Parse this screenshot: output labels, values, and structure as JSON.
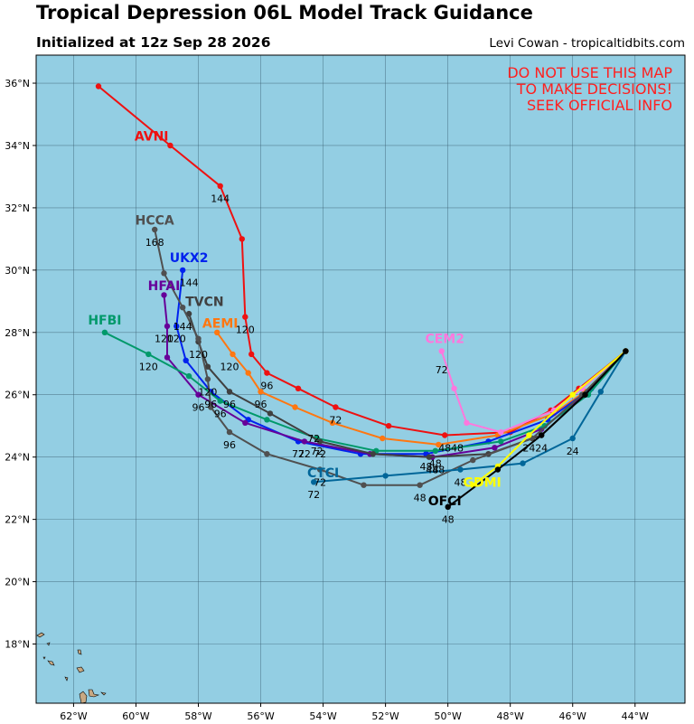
{
  "title": "Tropical Depression 06L Model Track Guidance",
  "subtitle": "Initialized at 12z Sep 28 2026",
  "credit": "Levi Cowan - tropicaltidbits.com",
  "warning": [
    "DO NOT USE THIS MAP",
    "TO MAKE DECISIONS!",
    "SEEK OFFICIAL INFO"
  ],
  "colors": {
    "ocean": "#93cee3",
    "land": "#c8a882",
    "grid": "#3a5f72",
    "warning": "#ff2020"
  },
  "map": {
    "lon_range": [
      -63.2,
      -42.4
    ],
    "lat_range": [
      16.1,
      36.9
    ],
    "lon_ticks": [
      {
        "value": -62,
        "label": "62°W"
      },
      {
        "value": -60,
        "label": "60°W"
      },
      {
        "value": -58,
        "label": "58°W"
      },
      {
        "value": -56,
        "label": "56°W"
      },
      {
        "value": -54,
        "label": "54°W"
      },
      {
        "value": -52,
        "label": "52°W"
      },
      {
        "value": -50,
        "label": "50°W"
      },
      {
        "value": -48,
        "label": "48°W"
      },
      {
        "value": -46,
        "label": "46°W"
      },
      {
        "value": -44,
        "label": "44°W"
      }
    ],
    "lat_ticks": [
      {
        "value": 18,
        "label": "18°N"
      },
      {
        "value": 20,
        "label": "20°N"
      },
      {
        "value": 22,
        "label": "22°N"
      },
      {
        "value": 24,
        "label": "24°N"
      },
      {
        "value": 26,
        "label": "26°N"
      },
      {
        "value": 28,
        "label": "28°N"
      },
      {
        "value": 30,
        "label": "30°N"
      },
      {
        "value": 32,
        "label": "32°N"
      },
      {
        "value": 34,
        "label": "34°N"
      },
      {
        "value": 36,
        "label": "36°N"
      }
    ]
  },
  "chart_data": {
    "type": "scatter",
    "xlim": [
      -63.2,
      -42.4
    ],
    "ylim": [
      16.1,
      36.9
    ],
    "grid": true,
    "models": [
      {
        "name": "AVNI",
        "color": "#ee1111",
        "label_at": [
          -59.5,
          34.3
        ],
        "points": [
          [
            -44.3,
            27.4
          ],
          [
            -45.8,
            26.2
          ],
          [
            -46.7,
            25.5
          ],
          [
            -48.0,
            24.8
          ],
          [
            -50.1,
            24.7
          ],
          [
            -51.9,
            25.0
          ],
          [
            -53.6,
            25.6
          ],
          [
            -54.8,
            26.2
          ],
          [
            -55.8,
            26.7
          ],
          [
            -56.3,
            27.3
          ],
          [
            -56.5,
            28.5
          ],
          [
            -56.6,
            31.0
          ],
          [
            -57.3,
            32.7
          ],
          [
            -58.9,
            34.0
          ],
          [
            -61.2,
            35.9
          ]
        ],
        "tau_labels": [
          {
            "text": "48",
            "at": [
              -50.1,
              24.3
            ]
          },
          {
            "text": "72",
            "at": [
              -53.6,
              25.2
            ]
          },
          {
            "text": "96",
            "at": [
              -55.8,
              26.3
            ]
          },
          {
            "text": "120",
            "at": [
              -56.5,
              28.1
            ]
          },
          {
            "text": "144",
            "at": [
              -57.3,
              32.3
            ]
          }
        ]
      },
      {
        "name": "AEMI",
        "color": "#ff7711",
        "label_at": [
          -57.3,
          28.3
        ],
        "points": [
          [
            -44.3,
            27.4
          ],
          [
            -45.6,
            26.1
          ],
          [
            -46.6,
            25.4
          ],
          [
            -48.4,
            24.7
          ],
          [
            -50.3,
            24.4
          ],
          [
            -52.1,
            24.6
          ],
          [
            -53.7,
            25.1
          ],
          [
            -54.9,
            25.6
          ],
          [
            -56.0,
            26.1
          ],
          [
            -56.4,
            26.7
          ],
          [
            -56.9,
            27.3
          ],
          [
            -57.4,
            28.0
          ]
        ],
        "tau_labels": [
          {
            "text": "48",
            "at": [
              -49.7,
              24.3
            ]
          },
          {
            "text": "72",
            "at": [
              -54.3,
              24.6
            ]
          },
          {
            "text": "96",
            "at": [
              -56.0,
              25.7
            ]
          },
          {
            "text": "120",
            "at": [
              -57.0,
              26.9
            ]
          }
        ]
      },
      {
        "name": "CEM2",
        "color": "#ff77dd",
        "label_at": [
          -50.1,
          27.8
        ],
        "points": [
          [
            -44.3,
            27.4
          ],
          [
            -45.7,
            26.2
          ],
          [
            -46.6,
            25.5
          ],
          [
            -48.3,
            24.8
          ],
          [
            -49.4,
            25.1
          ],
          [
            -49.8,
            26.2
          ],
          [
            -50.2,
            27.4
          ]
        ],
        "tau_labels": [
          {
            "text": "72",
            "at": [
              -50.2,
              26.8
            ]
          }
        ]
      },
      {
        "name": "UKX2",
        "color": "#0022ee",
        "label_at": [
          -58.3,
          30.4
        ],
        "points": [
          [
            -44.3,
            27.4
          ],
          [
            -45.4,
            26.2
          ],
          [
            -46.8,
            25.2
          ],
          [
            -48.7,
            24.5
          ],
          [
            -50.7,
            24.1
          ],
          [
            -52.8,
            24.1
          ],
          [
            -54.8,
            24.5
          ],
          [
            -56.4,
            25.2
          ],
          [
            -57.6,
            26.1
          ],
          [
            -58.4,
            27.1
          ],
          [
            -58.7,
            28.2
          ],
          [
            -58.5,
            30.0
          ]
        ],
        "tau_labels": [
          {
            "text": "48",
            "at": [
              -50.7,
              23.7
            ]
          },
          {
            "text": "72",
            "at": [
              -54.8,
              24.1
            ]
          },
          {
            "text": "96",
            "at": [
              -57.6,
              25.7
            ]
          },
          {
            "text": "120",
            "at": [
              -58.7,
              27.8
            ]
          },
          {
            "text": "144",
            "at": [
              -58.3,
              29.6
            ]
          }
        ]
      },
      {
        "name": "HFAI",
        "color": "#660099",
        "label_at": [
          -59.1,
          29.5
        ],
        "points": [
          [
            -44.3,
            27.4
          ],
          [
            -45.6,
            26.0
          ],
          [
            -47.0,
            24.9
          ],
          [
            -48.5,
            24.3
          ],
          [
            -50.5,
            24.0
          ],
          [
            -52.5,
            24.1
          ],
          [
            -54.6,
            24.5
          ],
          [
            -56.5,
            25.1
          ],
          [
            -58.0,
            26.0
          ],
          [
            -59.0,
            27.2
          ],
          [
            -59.0,
            28.2
          ],
          [
            -59.1,
            29.2
          ]
        ],
        "tau_labels": [
          {
            "text": "48",
            "at": [
              -50.5,
              23.6
            ]
          },
          {
            "text": "72",
            "at": [
              -54.6,
              24.1
            ]
          },
          {
            "text": "96",
            "at": [
              -58.0,
              25.6
            ]
          },
          {
            "text": "120",
            "at": [
              -59.1,
              27.8
            ]
          }
        ]
      },
      {
        "name": "HFBI",
        "color": "#00996a",
        "label_at": [
          -61.0,
          28.4
        ],
        "points": [
          [
            -44.3,
            27.4
          ],
          [
            -45.5,
            26.0
          ],
          [
            -46.9,
            25.0
          ],
          [
            -48.3,
            24.5
          ],
          [
            -50.4,
            24.2
          ],
          [
            -52.3,
            24.2
          ],
          [
            -54.2,
            24.6
          ],
          [
            -55.8,
            25.2
          ],
          [
            -57.3,
            25.8
          ],
          [
            -58.3,
            26.6
          ],
          [
            -59.6,
            27.3
          ],
          [
            -61.0,
            28.0
          ]
        ],
        "tau_labels": [
          {
            "text": "48",
            "at": [
              -50.4,
              23.8
            ]
          },
          {
            "text": "72",
            "at": [
              -54.2,
              24.2
            ]
          },
          {
            "text": "96",
            "at": [
              -57.3,
              25.4
            ]
          },
          {
            "text": "120",
            "at": [
              -59.6,
              26.9
            ]
          }
        ]
      },
      {
        "name": "TVCN",
        "color": "#404040",
        "label_at": [
          -57.8,
          29.0
        ],
        "points": [
          [
            -44.3,
            27.4
          ],
          [
            -45.6,
            26.0
          ],
          [
            -47.0,
            24.7
          ],
          [
            -48.7,
            24.1
          ],
          [
            -50.6,
            24.0
          ],
          [
            -52.4,
            24.1
          ],
          [
            -54.1,
            24.5
          ],
          [
            -55.7,
            25.4
          ],
          [
            -57.0,
            26.1
          ],
          [
            -57.7,
            26.9
          ],
          [
            -58.0,
            27.7
          ],
          [
            -58.3,
            28.6
          ]
        ],
        "tau_labels": [
          {
            "text": "48",
            "at": [
              -50.3,
              23.6
            ]
          },
          {
            "text": "72",
            "at": [
              -54.1,
              24.1
            ]
          },
          {
            "text": "96",
            "at": [
              -57.0,
              25.7
            ]
          },
          {
            "text": "120",
            "at": [
              -58.0,
              27.3
            ]
          },
          {
            "text": "144",
            "at": [
              -58.5,
              28.2
            ]
          }
        ]
      },
      {
        "name": "HCCA",
        "color": "#505050",
        "label_at": [
          -59.4,
          31.6
        ],
        "points": [
          [
            -44.3,
            27.4
          ],
          [
            -45.7,
            26.0
          ],
          [
            -47.3,
            24.6
          ],
          [
            -49.2,
            23.9
          ],
          [
            -50.9,
            23.1
          ],
          [
            -52.7,
            23.1
          ],
          [
            -54.1,
            23.6
          ],
          [
            -55.8,
            24.1
          ],
          [
            -57.0,
            24.8
          ],
          [
            -57.6,
            25.6
          ],
          [
            -57.7,
            26.5
          ],
          [
            -58.0,
            27.8
          ],
          [
            -58.5,
            28.8
          ],
          [
            -59.1,
            29.9
          ],
          [
            -59.4,
            31.3
          ]
        ],
        "tau_labels": [
          {
            "text": "48",
            "at": [
              -50.9,
              22.7
            ]
          },
          {
            "text": "72",
            "at": [
              -54.1,
              23.2
            ]
          },
          {
            "text": "96",
            "at": [
              -57.0,
              24.4
            ]
          },
          {
            "text": "120",
            "at": [
              -57.7,
              26.1
            ]
          },
          {
            "text": "168",
            "at": [
              -59.4,
              30.9
            ]
          }
        ]
      },
      {
        "name": "CTCI",
        "color": "#006699",
        "label_at": [
          -54.0,
          23.5
        ],
        "points": [
          [
            -44.3,
            27.4
          ],
          [
            -45.1,
            26.1
          ],
          [
            -46.0,
            24.6
          ],
          [
            -47.6,
            23.8
          ],
          [
            -49.6,
            23.6
          ],
          [
            -52.0,
            23.4
          ],
          [
            -54.3,
            23.2
          ]
        ],
        "tau_labels": [
          {
            "text": "24",
            "at": [
              -46.0,
              24.2
            ]
          },
          {
            "text": "48",
            "at": [
              -49.6,
              23.2
            ]
          },
          {
            "text": "72",
            "at": [
              -54.3,
              22.8
            ]
          }
        ]
      },
      {
        "name": "GDMI",
        "color": "#ffff00",
        "label_at": [
          -48.9,
          23.2
        ],
        "points": [
          [
            -44.3,
            27.4
          ],
          [
            -46.0,
            26.0
          ],
          [
            -47.4,
            24.7
          ],
          [
            -48.4,
            23.7
          ],
          [
            -49.2,
            23.1
          ]
        ],
        "tau_labels": [
          {
            "text": "24",
            "at": [
              -47.4,
              24.3
            ]
          }
        ]
      },
      {
        "name": "OFCI",
        "color": "#000000",
        "label_at": [
          -50.1,
          22.6
        ],
        "points": [
          [
            -44.3,
            27.4
          ],
          [
            -45.6,
            26.0
          ],
          [
            -47.0,
            24.7
          ],
          [
            -48.4,
            23.6
          ],
          [
            -50.0,
            22.4
          ]
        ],
        "tau_labels": [
          {
            "text": "24",
            "at": [
              -47.0,
              24.3
            ]
          },
          {
            "text": "48",
            "at": [
              -50.0,
              22.0
            ]
          }
        ]
      }
    ]
  }
}
